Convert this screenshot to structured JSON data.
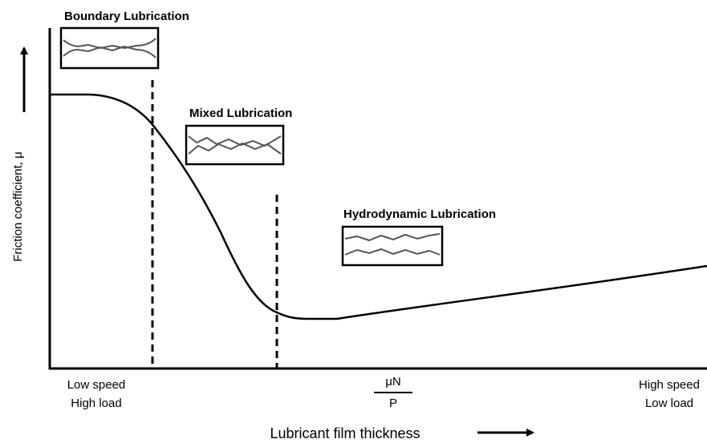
{
  "regimes": [
    {
      "title": "Boundary Lubrication"
    },
    {
      "title": "Mixed Lubrication"
    },
    {
      "title": "Hydrodynamic Lubrication"
    }
  ],
  "y_axis": {
    "label": "Friction coefficient, μ"
  },
  "x_axis": {
    "label": "Lubricant film thickness",
    "left": [
      "Low speed",
      "High load"
    ],
    "center": {
      "numerator": "μN",
      "denominator": "P"
    },
    "right": [
      "High speed",
      "Low load"
    ]
  }
}
